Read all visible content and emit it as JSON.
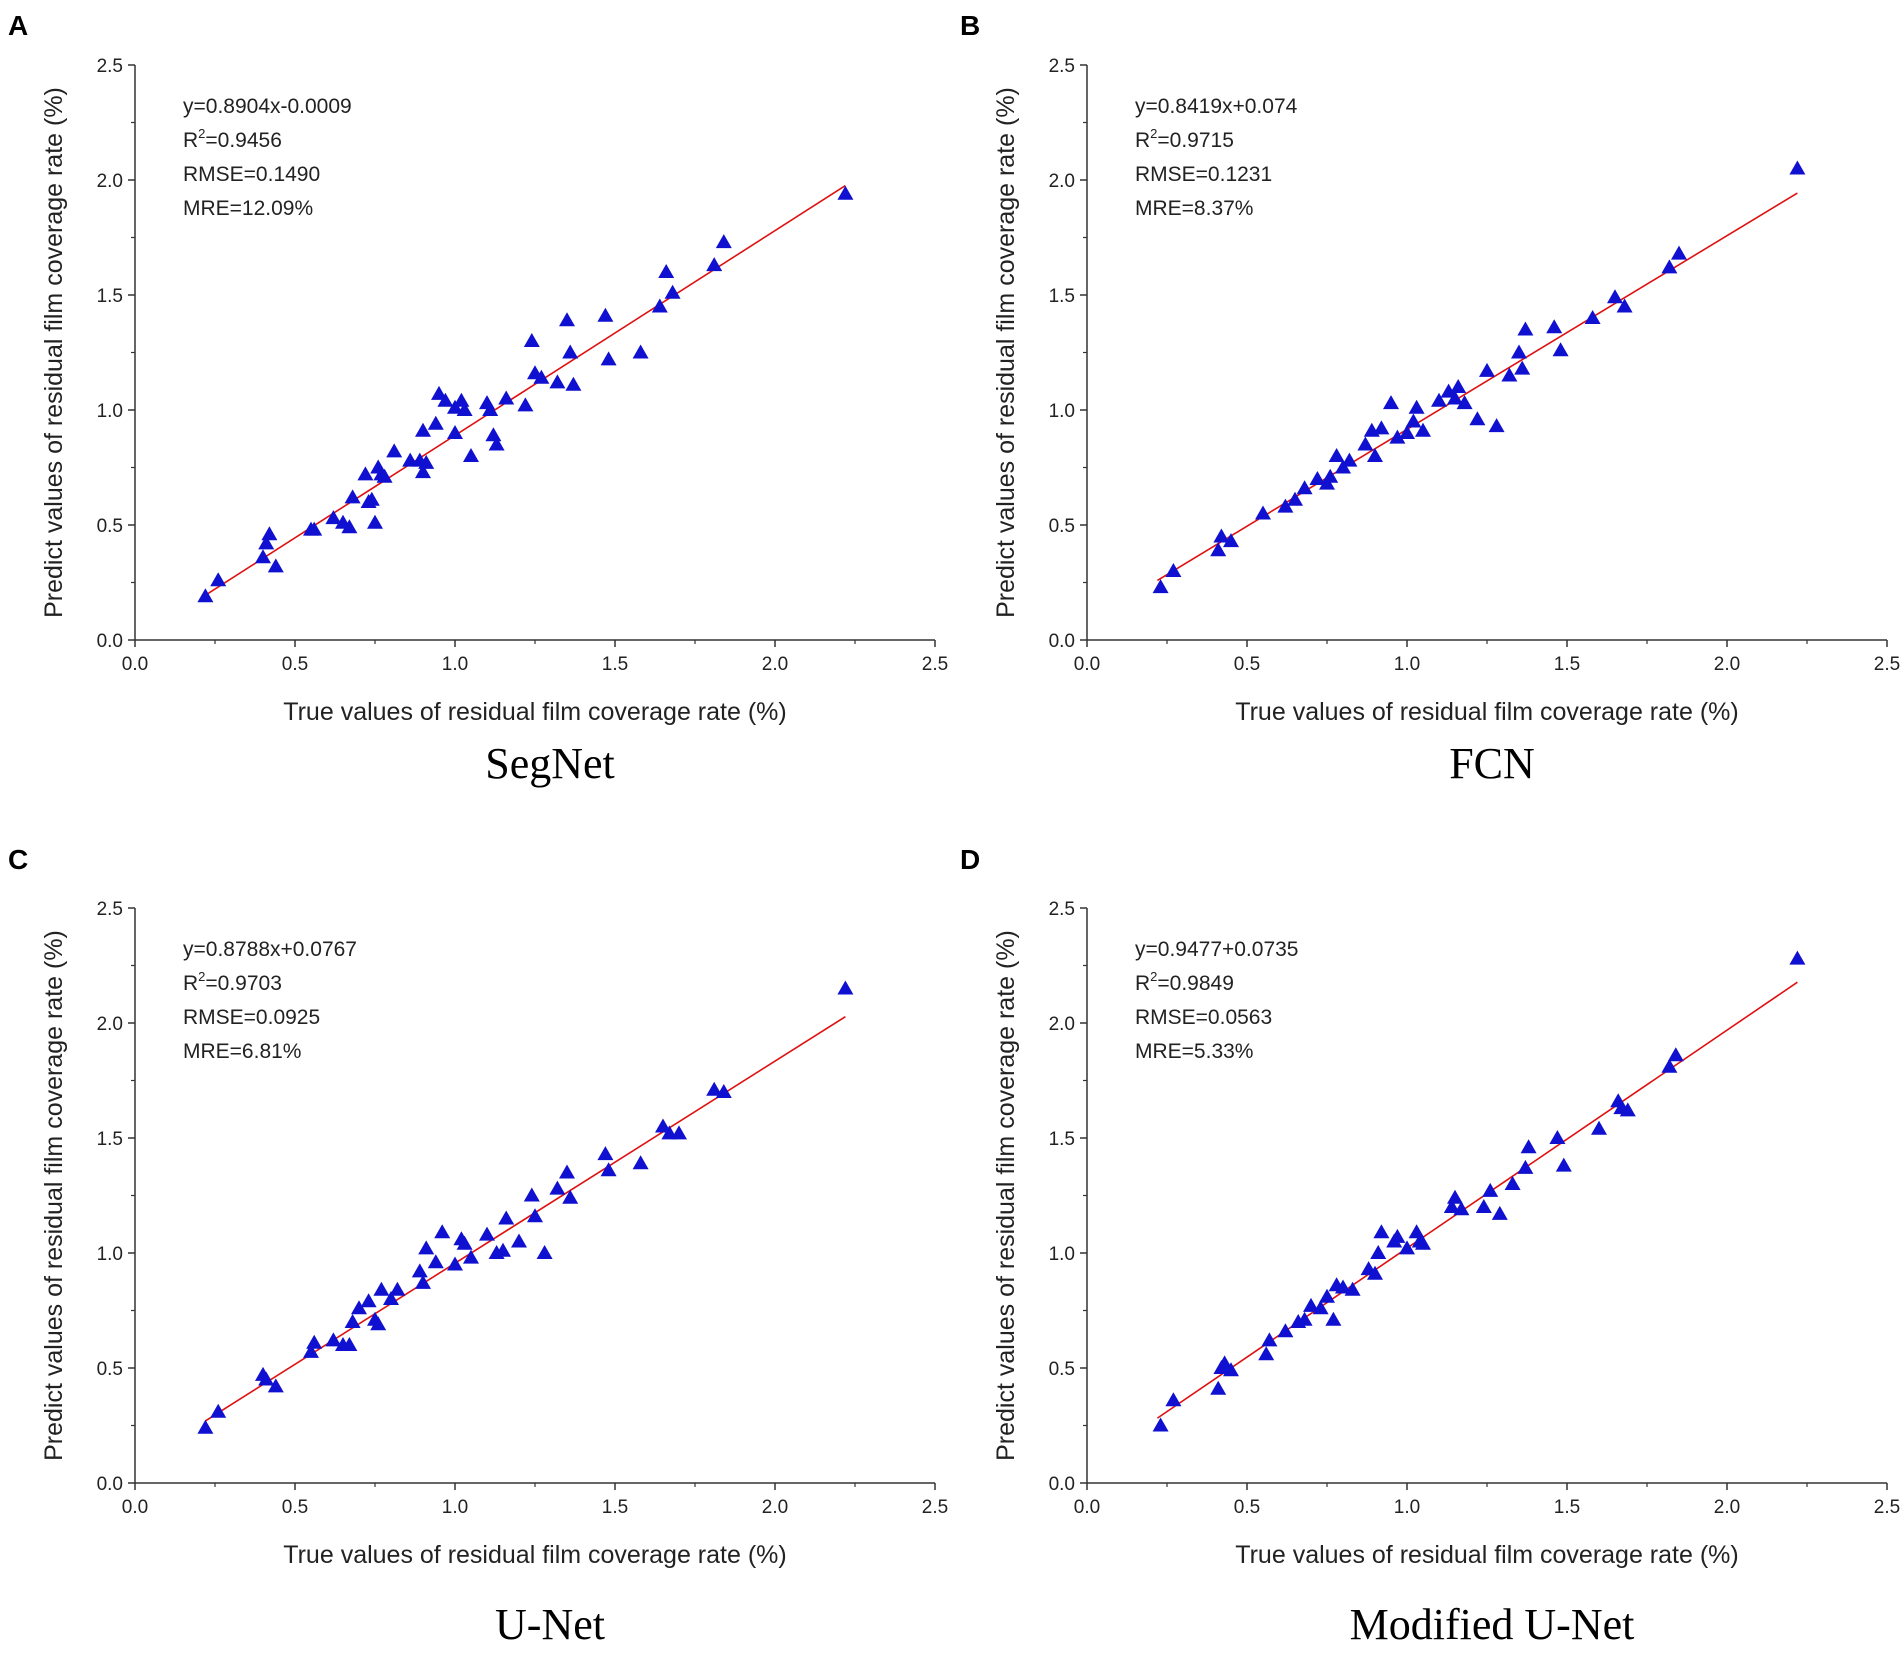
{
  "chart_data": [
    {
      "panel": "A",
      "model": "SegNet",
      "type": "scatter",
      "xlabel": "True values of residual film coverage rate (%)",
      "ylabel": "Predict values of residual film coverage rate (%)",
      "xlim": [
        0,
        2.5
      ],
      "ylim": [
        0,
        2.5
      ],
      "xticks": [
        "0.0",
        "0.5",
        "1.0",
        "1.5",
        "2.0",
        "2.5"
      ],
      "yticks": [
        "0.0",
        "0.5",
        "1.0",
        "1.5",
        "2.0",
        "2.5"
      ],
      "grid": false,
      "stats": {
        "equation": "y=0.8904x-0.0009",
        "r2_label": "R",
        "r2_value": "=0.9456",
        "rmse": "RMSE=0.1490",
        "mre": "MRE=12.09%"
      },
      "fit": {
        "slope": 0.8904,
        "intercept": -0.0009,
        "x_range": [
          0.22,
          2.22
        ],
        "color": "#e01010"
      },
      "marker_color": "#1010d0",
      "x": [
        0.22,
        0.26,
        0.4,
        0.41,
        0.42,
        0.44,
        0.55,
        0.56,
        0.62,
        0.65,
        0.67,
        0.68,
        0.72,
        0.73,
        0.74,
        0.75,
        0.76,
        0.77,
        0.78,
        0.81,
        0.86,
        0.89,
        0.9,
        0.9,
        0.91,
        0.94,
        0.95,
        0.97,
        1.0,
        1.0,
        1.02,
        1.03,
        1.05,
        1.1,
        1.11,
        1.12,
        1.13,
        1.16,
        1.22,
        1.24,
        1.25,
        1.27,
        1.32,
        1.35,
        1.36,
        1.37,
        1.47,
        1.48,
        1.58,
        1.64,
        1.66,
        1.68,
        1.81,
        1.84,
        2.22
      ],
      "y": [
        0.19,
        0.26,
        0.36,
        0.42,
        0.46,
        0.32,
        0.48,
        0.48,
        0.53,
        0.51,
        0.49,
        0.62,
        0.72,
        0.6,
        0.61,
        0.51,
        0.75,
        0.72,
        0.71,
        0.82,
        0.78,
        0.78,
        0.91,
        0.73,
        0.77,
        0.94,
        1.07,
        1.04,
        0.9,
        1.01,
        1.04,
        1.0,
        0.8,
        1.03,
        1.0,
        0.89,
        0.85,
        1.05,
        1.02,
        1.3,
        1.16,
        1.14,
        1.12,
        1.39,
        1.25,
        1.11,
        1.41,
        1.22,
        1.25,
        1.45,
        1.6,
        1.51,
        1.63,
        1.73,
        1.94
      ]
    },
    {
      "panel": "B",
      "model": "FCN",
      "type": "scatter",
      "xlabel": "True values of residual film  coverage rate (%)",
      "ylabel": "Predict values of residual film coverage rate (%)",
      "xlim": [
        0,
        2.5
      ],
      "ylim": [
        0,
        2.5
      ],
      "xticks": [
        "0.0",
        "0.5",
        "1.0",
        "1.5",
        "2.0",
        "2.5"
      ],
      "yticks": [
        "0.0",
        "0.5",
        "1.0",
        "1.5",
        "2.0",
        "2.5"
      ],
      "grid": false,
      "stats": {
        "equation": "y=0.8419x+0.074",
        "r2_label": "R",
        "r2_value": "=0.9715",
        "rmse": "RMSE=0.1231",
        "mre": "MRE=8.37%"
      },
      "fit": {
        "slope": 0.8419,
        "intercept": 0.074,
        "x_range": [
          0.22,
          2.22
        ],
        "color": "#e01010"
      },
      "marker_color": "#1010d0",
      "x": [
        0.23,
        0.27,
        0.41,
        0.42,
        0.45,
        0.55,
        0.62,
        0.65,
        0.68,
        0.72,
        0.75,
        0.76,
        0.78,
        0.8,
        0.82,
        0.87,
        0.89,
        0.9,
        0.92,
        0.95,
        0.97,
        1.0,
        1.02,
        1.03,
        1.05,
        1.1,
        1.13,
        1.15,
        1.16,
        1.18,
        1.22,
        1.25,
        1.28,
        1.32,
        1.35,
        1.36,
        1.37,
        1.46,
        1.48,
        1.58,
        1.65,
        1.68,
        1.82,
        1.85,
        2.22
      ],
      "y": [
        0.23,
        0.3,
        0.39,
        0.45,
        0.43,
        0.55,
        0.58,
        0.61,
        0.66,
        0.7,
        0.68,
        0.71,
        0.8,
        0.75,
        0.78,
        0.85,
        0.91,
        0.8,
        0.92,
        1.03,
        0.88,
        0.9,
        0.95,
        1.01,
        0.91,
        1.04,
        1.08,
        1.05,
        1.1,
        1.03,
        0.96,
        1.17,
        0.93,
        1.15,
        1.25,
        1.18,
        1.35,
        1.36,
        1.26,
        1.4,
        1.49,
        1.45,
        1.62,
        1.68,
        2.05
      ]
    },
    {
      "panel": "C",
      "model": "U-Net",
      "type": "scatter",
      "xlabel": "True values of residual film coverage rate (%)",
      "ylabel": "Predict values of residual film coverage rate (%)",
      "xlim": [
        0,
        2.5
      ],
      "ylim": [
        0,
        2.5
      ],
      "xticks": [
        "0.0",
        "0.5",
        "1.0",
        "1.5",
        "2.0",
        "2.5"
      ],
      "yticks": [
        "0.0",
        "0.5",
        "1.0",
        "1.5",
        "2.0",
        "2.5"
      ],
      "grid": false,
      "stats": {
        "equation": "y=0.8788x+0.0767",
        "r2_label": "R",
        "r2_value": "=0.9703",
        "rmse": "RMSE=0.0925",
        "mre": "MRE=6.81%"
      },
      "fit": {
        "slope": 0.8788,
        "intercept": 0.0767,
        "x_range": [
          0.22,
          2.22
        ],
        "color": "#e01010"
      },
      "marker_color": "#1010d0",
      "x": [
        0.22,
        0.26,
        0.4,
        0.41,
        0.44,
        0.55,
        0.56,
        0.62,
        0.65,
        0.67,
        0.68,
        0.7,
        0.73,
        0.75,
        0.76,
        0.77,
        0.8,
        0.82,
        0.89,
        0.9,
        0.91,
        0.94,
        0.96,
        1.0,
        1.02,
        1.03,
        1.05,
        1.1,
        1.13,
        1.15,
        1.16,
        1.2,
        1.24,
        1.25,
        1.28,
        1.32,
        1.35,
        1.36,
        1.47,
        1.48,
        1.58,
        1.65,
        1.67,
        1.7,
        1.81,
        1.84,
        2.22
      ],
      "y": [
        0.24,
        0.31,
        0.47,
        0.45,
        0.42,
        0.57,
        0.61,
        0.62,
        0.6,
        0.6,
        0.7,
        0.76,
        0.79,
        0.71,
        0.69,
        0.84,
        0.8,
        0.84,
        0.92,
        0.87,
        1.02,
        0.96,
        1.09,
        0.95,
        1.06,
        1.04,
        0.98,
        1.08,
        1.0,
        1.01,
        1.15,
        1.05,
        1.25,
        1.16,
        1.0,
        1.28,
        1.35,
        1.24,
        1.43,
        1.36,
        1.39,
        1.55,
        1.52,
        1.52,
        1.71,
        1.7,
        2.15
      ]
    },
    {
      "panel": "D",
      "model": "Modified U-Net",
      "type": "scatter",
      "xlabel": "True values of residual film coverage rate (%)",
      "ylabel": "Predict values of residual film coverage rate (%)",
      "xlim": [
        0,
        2.5
      ],
      "ylim": [
        0,
        2.5
      ],
      "xticks": [
        "0.0",
        "0.5",
        "1.0",
        "1.5",
        "2.0",
        "2.5"
      ],
      "yticks": [
        "0.0",
        "0.5",
        "1.0",
        "1.5",
        "2.0",
        "2.5"
      ],
      "grid": false,
      "stats": {
        "equation": "y=0.9477+0.0735",
        "r2_label": "R",
        "r2_value": "=0.9849",
        "rmse": "RMSE=0.0563",
        "mre": "MRE=5.33%"
      },
      "fit": {
        "slope": 0.9477,
        "intercept": 0.0735,
        "x_range": [
          0.22,
          2.22
        ],
        "color": "#e01010"
      },
      "marker_color": "#1010d0",
      "x": [
        0.23,
        0.27,
        0.41,
        0.42,
        0.43,
        0.45,
        0.56,
        0.57,
        0.62,
        0.66,
        0.68,
        0.7,
        0.73,
        0.75,
        0.77,
        0.78,
        0.8,
        0.83,
        0.88,
        0.9,
        0.91,
        0.92,
        0.96,
        0.97,
        1.0,
        1.03,
        1.04,
        1.05,
        1.14,
        1.15,
        1.17,
        1.24,
        1.26,
        1.29,
        1.33,
        1.37,
        1.38,
        1.47,
        1.49,
        1.6,
        1.66,
        1.67,
        1.69,
        1.82,
        1.84,
        2.22
      ],
      "y": [
        0.25,
        0.36,
        0.41,
        0.5,
        0.52,
        0.49,
        0.56,
        0.62,
        0.66,
        0.7,
        0.71,
        0.77,
        0.76,
        0.81,
        0.71,
        0.86,
        0.85,
        0.84,
        0.93,
        0.91,
        1.0,
        1.09,
        1.05,
        1.07,
        1.02,
        1.09,
        1.05,
        1.04,
        1.2,
        1.24,
        1.19,
        1.2,
        1.27,
        1.17,
        1.3,
        1.37,
        1.46,
        1.5,
        1.38,
        1.54,
        1.66,
        1.63,
        1.62,
        1.81,
        1.86,
        2.28
      ]
    }
  ]
}
